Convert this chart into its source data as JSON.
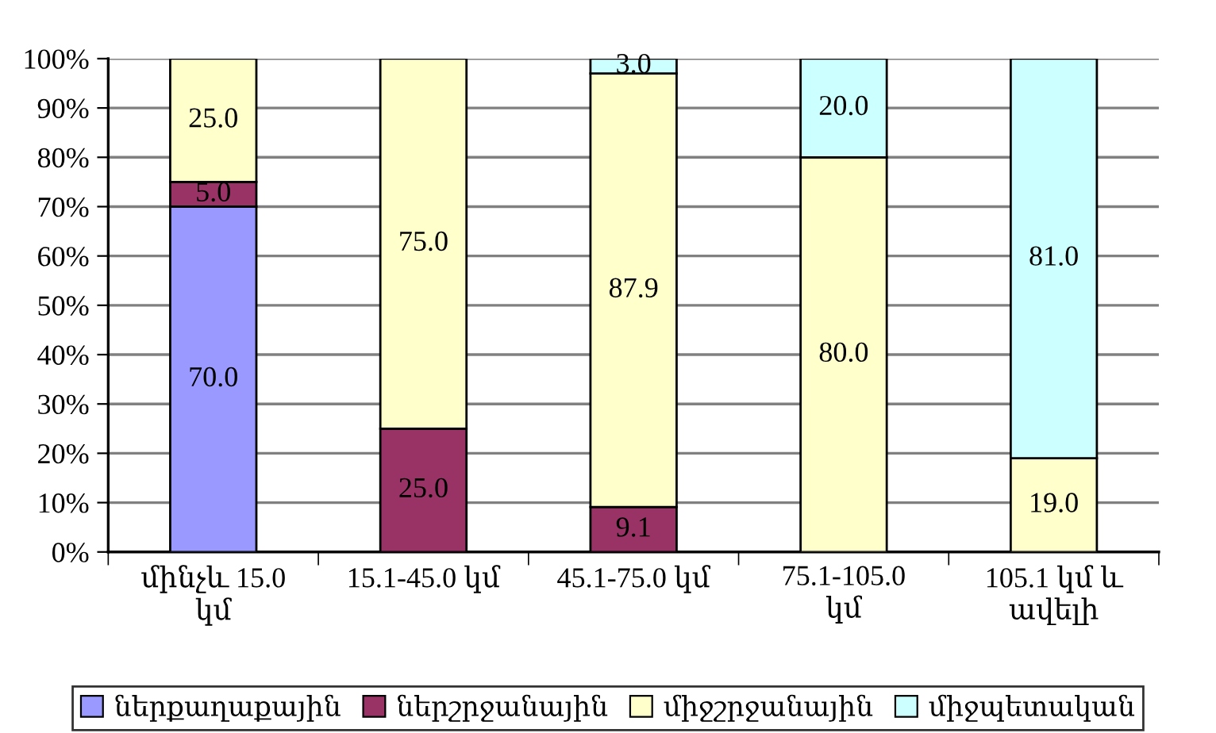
{
  "chart_data": {
    "type": "bar",
    "stacked": true,
    "categories": [
      "մինչև 15.0 կմ",
      "15.1-45.0 կմ",
      "45.1-75.0 կմ",
      "75.1-105.0 կմ",
      "105.1 կմ և ավելի"
    ],
    "series": [
      {
        "name": "ներքաղաքային",
        "color": "#9999ff",
        "values": [
          70.0,
          null,
          null,
          null,
          null
        ],
        "value_labels": [
          "70.0",
          null,
          null,
          null,
          null
        ]
      },
      {
        "name": "ներշրջանային",
        "color": "#993366",
        "values": [
          5.0,
          25.0,
          9.1,
          null,
          null
        ],
        "value_labels": [
          "5.0",
          "25.0",
          "9.1",
          null,
          null
        ]
      },
      {
        "name": "միջշրջանային",
        "color": "#ffffcc",
        "values": [
          25.0,
          75.0,
          87.9,
          80.0,
          19.0
        ],
        "value_labels": [
          "25.0",
          "75.0",
          "87.9",
          "80.0",
          "19.0"
        ]
      },
      {
        "name": "միջպետական",
        "color": "#ccffff",
        "values": [
          null,
          null,
          3.0,
          20.0,
          81.0
        ],
        "value_labels": [
          null,
          null,
          "3.0",
          "20.0",
          "81.0"
        ]
      }
    ],
    "ylim": [
      0,
      100
    ],
    "yticks": [
      {
        "value": 0,
        "label": "0%"
      },
      {
        "value": 10,
        "label": "10%"
      },
      {
        "value": 20,
        "label": "20%"
      },
      {
        "value": 30,
        "label": "30%"
      },
      {
        "value": 40,
        "label": "40%"
      },
      {
        "value": 50,
        "label": "50%"
      },
      {
        "value": 60,
        "label": "60%"
      },
      {
        "value": 70,
        "label": "70%"
      },
      {
        "value": 80,
        "label": "80%"
      },
      {
        "value": 90,
        "label": "90%"
      },
      {
        "value": 100,
        "label": "100%"
      }
    ],
    "grid": "y",
    "legend": "bottom"
  }
}
